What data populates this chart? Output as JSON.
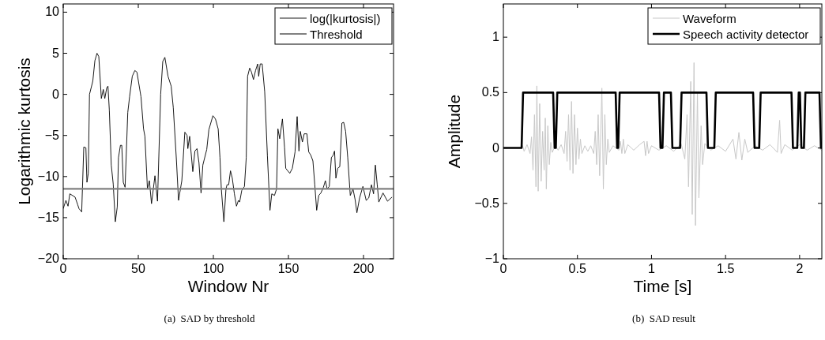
{
  "chart_data": [
    {
      "type": "line",
      "xlabel": "Window Nr",
      "ylabel": "Logarithmic kurtosis",
      "xlim": [
        0,
        220
      ],
      "ylim": [
        -20,
        11
      ],
      "xticks": [
        0,
        50,
        100,
        150,
        200
      ],
      "yticks": [
        -20,
        -15,
        -10,
        -5,
        0,
        5,
        10
      ],
      "legend": "top right",
      "grid": false,
      "annotations": [
        "(a)  SAD by threshold"
      ],
      "series": [
        {
          "name": "log(|kurtosis|)",
          "color": "#000000",
          "x": [
            0,
            1.8,
            3.2,
            4.4,
            7.9,
            9.6,
            10.5,
            12.3,
            12.8,
            13.7,
            15.1,
            15.8,
            16.7,
            17.5,
            19.7,
            21.1,
            22.5,
            23.7,
            25.4,
            26.7,
            27.7,
            29,
            29.8,
            30.7,
            32,
            33.3,
            34.7,
            36,
            36.8,
            38.1,
            39,
            40,
            41.2,
            43,
            44.2,
            46,
            47.7,
            49.1,
            51.8,
            53.5,
            54.4,
            56.1,
            57.4,
            58.8,
            61.1,
            62.8,
            64.9,
            66.3,
            67.7,
            69.8,
            71.9,
            73.3,
            75.4,
            76.8,
            79,
            81,
            82.5,
            83,
            84.2,
            86.3,
            87.7,
            89.1,
            90.4,
            91.8,
            93,
            95.6,
            97,
            99.7,
            101.4,
            103.2,
            104.4,
            105.3,
            107,
            108.4,
            109.1,
            110.2,
            111.4,
            112.6,
            114,
            115.4,
            116.7,
            117.5,
            118.9,
            120.7,
            121.9,
            122.8,
            124.2,
            125.4,
            126.7,
            128.1,
            129.5,
            130.2,
            131.2,
            132.5,
            134.2,
            136,
            137.7,
            138.9,
            140.7,
            142.1,
            143,
            144.2,
            146,
            147.4,
            148.2,
            150.9,
            152.6,
            154.4,
            155.8,
            157,
            157.9,
            159.3,
            160.5,
            162.3,
            163.5,
            164.9,
            166.3,
            167.5,
            168.8,
            170.2,
            171.6,
            173.3,
            174.6,
            175.8,
            177.2,
            178.6,
            179.8,
            180.7,
            181.6,
            182.8,
            184.2,
            185.6,
            186.8,
            188.1,
            189.5,
            191.2,
            193,
            194.4,
            195.6,
            197.4,
            199.6,
            201.8,
            203.5,
            205.3,
            206.7,
            207.9,
            209.1,
            210.2,
            213,
            216,
            219
          ],
          "values": [
            -13.9,
            -12.9,
            -13.6,
            -12.1,
            -12.5,
            -13.4,
            -13.9,
            -14.3,
            -11.5,
            -6.4,
            -6.5,
            -10.7,
            -9.6,
            0,
            1.6,
            4.1,
            5,
            4.6,
            -0.5,
            0.6,
            -0.5,
            0.8,
            1,
            -1.9,
            -8.6,
            -10.9,
            -15.5,
            -13.7,
            -7.7,
            -6.2,
            -6.2,
            -10.7,
            -11.3,
            -2.2,
            -0.3,
            2.2,
            2.9,
            2.7,
            -0.3,
            -4.2,
            -5.1,
            -11.5,
            -10.5,
            -13.3,
            -9.9,
            -13,
            0,
            4,
            4.5,
            2.2,
            1,
            -1.6,
            -8,
            -12.9,
            -10.5,
            -4.6,
            -5,
            -6.6,
            -5.1,
            -9.4,
            -6.9,
            -6.6,
            -8.3,
            -12,
            -8.6,
            -6.7,
            -4.3,
            -2.6,
            -3,
            -4.2,
            -7.7,
            -11.5,
            -15.5,
            -11.5,
            -11,
            -11,
            -9.3,
            -10.2,
            -12.1,
            -13.6,
            -12.9,
            -13.1,
            -11.7,
            -11.2,
            -7.7,
            2.2,
            3.2,
            2.7,
            1.8,
            2.9,
            3.7,
            2.2,
            3.7,
            3.7,
            0.3,
            -7.5,
            -14.1,
            -12.1,
            -12.3,
            -11.5,
            -4.2,
            -5.4,
            -3,
            -6.4,
            -9,
            -9.6,
            -9,
            -7,
            -2.7,
            -6.9,
            -4.5,
            -5.8,
            -4.8,
            -4.8,
            -7,
            -7.4,
            -8.1,
            -10.9,
            -14.1,
            -12.3,
            -12,
            -11.3,
            -10.5,
            -11.5,
            -11.2,
            -7.7,
            -7.4,
            -6.9,
            -10.2,
            -9,
            -8.8,
            -3.5,
            -3.4,
            -4.5,
            -7.7,
            -12.3,
            -11.5,
            -12.8,
            -14.4,
            -12.6,
            -11.2,
            -12.9,
            -12.6,
            -11,
            -12.1,
            -8.6,
            -10.9,
            -13.1,
            -12,
            -13,
            -12.5
          ]
        },
        {
          "name": "Threshold",
          "color": "#808080",
          "x": [
            0,
            220
          ],
          "values": [
            -11.5,
            -11.5
          ]
        }
      ]
    },
    {
      "type": "line",
      "xlabel": "Time [s]",
      "ylabel": "Amplitude",
      "xlim": [
        0,
        2.15
      ],
      "ylim": [
        -1,
        1.3
      ],
      "xticks": [
        0,
        0.5,
        1,
        1.5,
        2
      ],
      "yticks": [
        -1,
        -0.5,
        0,
        0.5,
        1
      ],
      "legend": "top right",
      "grid": false,
      "annotations": [
        "(b)  SAD result"
      ],
      "series": [
        {
          "name": "Waveform",
          "color": "#c8c8c8",
          "x": [
            0,
            0.12,
            0.13,
            0.14,
            0.16,
            0.18,
            0.19,
            0.2,
            0.21,
            0.22,
            0.226,
            0.235,
            0.245,
            0.255,
            0.265,
            0.275,
            0.283,
            0.29,
            0.3,
            0.31,
            0.32,
            0.33,
            0.35,
            0.37,
            0.39,
            0.41,
            0.42,
            0.43,
            0.44,
            0.45,
            0.46,
            0.47,
            0.48,
            0.49,
            0.5,
            0.51,
            0.52,
            0.53,
            0.55,
            0.57,
            0.59,
            0.61,
            0.62,
            0.63,
            0.64,
            0.65,
            0.665,
            0.675,
            0.685,
            0.695,
            0.705,
            0.715,
            0.74,
            0.78,
            0.79,
            0.8,
            0.81,
            0.82,
            0.84,
            0.88,
            0.92,
            0.95,
            0.96,
            0.97,
            0.98,
            1.0,
            1.05,
            1.1,
            1.15,
            1.2,
            1.225,
            1.24,
            1.25,
            1.265,
            1.275,
            1.287,
            1.297,
            1.31,
            1.32,
            1.335,
            1.345,
            1.36,
            1.4,
            1.45,
            1.5,
            1.55,
            1.57,
            1.59,
            1.61,
            1.63,
            1.65,
            1.7,
            1.75,
            1.8,
            1.85,
            1.865,
            1.875,
            1.9,
            1.95,
            2.0,
            2.05,
            2.1,
            2.15
          ],
          "values": [
            0,
            0,
            0.02,
            -0.03,
            0.03,
            -0.05,
            0.1,
            -0.2,
            0.3,
            -0.35,
            0.56,
            -0.39,
            0.4,
            -0.3,
            0.15,
            -0.2,
            0.27,
            -0.37,
            0.2,
            -0.15,
            0.05,
            -0.04,
            0.02,
            -0.02,
            0.03,
            -0.05,
            0.15,
            -0.12,
            0.3,
            -0.2,
            0.42,
            -0.23,
            0.3,
            -0.15,
            0.18,
            -0.1,
            0.08,
            -0.05,
            0.02,
            -0.03,
            0.02,
            -0.05,
            0.15,
            -0.15,
            0.3,
            -0.25,
            0.54,
            -0.37,
            0.3,
            -0.15,
            0.08,
            -0.04,
            0.02,
            -0.02,
            0.06,
            -0.05,
            0.08,
            -0.05,
            0.03,
            -0.02,
            0.03,
            0.06,
            -0.07,
            0.06,
            -0.05,
            0.02,
            -0.02,
            0.02,
            -0.03,
            0.04,
            -0.1,
            0.3,
            -0.35,
            0.6,
            -0.6,
            0.77,
            -0.7,
            0.5,
            -0.45,
            0.2,
            -0.15,
            0.04,
            -0.02,
            0.02,
            -0.03,
            0.08,
            -0.1,
            0.14,
            -0.11,
            0.08,
            -0.04,
            0.02,
            -0.02,
            0.03,
            -0.04,
            0.25,
            -0.05,
            0.03,
            -0.02,
            0.03,
            -0.02,
            0.02,
            -0.02
          ]
        },
        {
          "name": "Speech activity detector",
          "color": "#000000",
          "x": [
            0,
            0.123,
            0.133,
            0.336,
            0.346,
            0.354,
            0.364,
            0.758,
            0.768,
            0.775,
            0.785,
            1.051,
            1.061,
            1.074,
            1.084,
            1.131,
            1.141,
            1.193,
            1.203,
            1.371,
            1.381,
            1.424,
            1.434,
            1.686,
            1.696,
            1.727,
            1.737,
            1.945,
            1.955,
            1.984,
            1.994,
            2.002,
            2.012,
            2.029,
            2.039,
            2.134,
            2.144,
            2.15
          ],
          "values": [
            0,
            0,
            0.5,
            0.5,
            0,
            0,
            0.5,
            0.5,
            0,
            0,
            0.5,
            0.5,
            0,
            0,
            0.5,
            0.5,
            0,
            0,
            0.5,
            0.5,
            0,
            0,
            0.5,
            0.5,
            0,
            0,
            0.5,
            0.5,
            0,
            0,
            0.5,
            0.5,
            0,
            0,
            0.5,
            0.5,
            0,
            0
          ]
        }
      ]
    }
  ]
}
